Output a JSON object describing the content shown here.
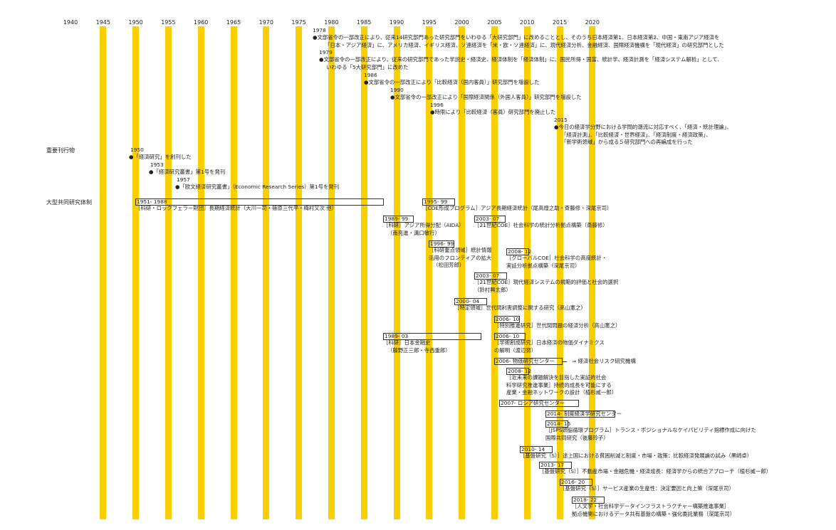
{
  "years": [
    "1940",
    "1945",
    "1950",
    "1955",
    "1960",
    "1965",
    "1970",
    "1975",
    "1980",
    "1985",
    "1990",
    "1995",
    "2000",
    "2005",
    "2010",
    "2015",
    "2020"
  ],
  "sections": {
    "publications": "重要刊行物",
    "projects": "大型共同研究体制"
  },
  "history": [
    {
      "year": "1978",
      "lines": [
        "●文部省令の一部改正により、従来14研究部門あった研究部門をいわゆる「大研究部門」に改めることとし、そのうち日本経済第1、日本経済第2、中国・東南アジア経済を",
        "「日本・アジア経済」に、アメリカ経済、イギリス経済、ソ連経済を「米・欧・ソ連経済」に、現代経済分析、金融経済、国際経済機構を「現代経済」の研究部門とした"
      ]
    },
    {
      "year": "1979",
      "lines": [
        "●文部省令の一部改正により、従来の研究部門であった学説史・経済史、経済体制を「経済体制」に、国民所得・国富、統計学、経済計測を「経済システム解析」として、",
        "いわゆる「5大研究部門」に改めた"
      ]
    },
    {
      "year": "1986",
      "lines": [
        "●文部省令の一部改正により「比較経済（国内客員）」研究部門を増設した"
      ]
    },
    {
      "year": "1990",
      "lines": [
        "●文部省令の一部改正により「国際経済関係（外国人客員）」研究部門を増設した"
      ]
    },
    {
      "year": "1996",
      "lines": [
        "●時限により「比較経済（客員）研究部門を廃止した"
      ]
    },
    {
      "year": "2015",
      "lines": [
        "●今日の経済学分野における学問的潮流に対応すべく、「経済・統計理論」、",
        "「経済計測」、「比較経済・世界経済」、「経済制度・経済政策」、",
        "「新学術領域」から成る５研究部門への再編成を行った"
      ]
    }
  ],
  "publications": [
    {
      "year": "1950",
      "text": "●「経済研究」を創刊した"
    },
    {
      "year": "1953",
      "text": "●「経済研究叢書」第1号を発刊"
    },
    {
      "year": "1957",
      "text": "●「欧文経済研究叢書」（Economic Research Series）第1号を発刊"
    }
  ],
  "projects": [
    {
      "period": "1951- 1988",
      "lines": [
        "［科研・ロックフェラー財団］長期経済統計（大川一司・篠原三代平・梅村又次 他）"
      ]
    },
    {
      "period": "1995- 99",
      "lines": [
        "［COE形成プログラム］アジア長期経済統計（尾高煌之助・斎藤修・深尾京司）"
      ]
    },
    {
      "period": "1989- 99",
      "lines": [
        "［科研］アジア所得分配（AIDA）",
        "（南亮進・溝口敏行）"
      ]
    },
    {
      "period": "2003- 07",
      "lines": [
        "［21世紀COE］社会科学の統計分析拠点構築（斎藤修）"
      ]
    },
    {
      "period": "1996- 99",
      "lines": [
        "［科研重点領域］統計情報",
        "活用のフロンティアの拡大",
        "（松田芳郎）"
      ]
    },
    {
      "period": "2008- 12",
      "lines": [
        "［グローバルCOE］社会科学の高度統計・",
        "実証分析拠点構築（深尾京司）"
      ]
    },
    {
      "period": "2003- 07",
      "lines": [
        "［21世紀COE］現代経済システムの規範的評価と社会的選択",
        "（鈴村興太郎）"
      ]
    },
    {
      "period": "2000- 04",
      "lines": [
        "［特定領域］世代間利害調整に関する研究（高山憲之）"
      ]
    },
    {
      "period": "2006- 10",
      "lines": [
        "［特別推進研究］世代間問題の経済分析（高山憲之）"
      ]
    },
    {
      "period": "1989- 03",
      "lines": [
        "［科研］日本金融史",
        "（藤野正三郎・寺西重郎）"
      ]
    },
    {
      "period": "2006- 10",
      "lines": [
        "［学術創成研究］日本経済の物価ダイナミクス",
        "の解明（渡辺努）"
      ]
    },
    {
      "period": "2006-  物価研究センター",
      "lines": []
    },
    {
      "arrow": "⇒  経済社会リスク研究機構"
    },
    {
      "period": "2008- 12",
      "lines": [
        "［近未来の課題解決を目指した実証的社会",
        "科学研究推進事業］持続的成長を可能にする",
        "産業・金融ネットワークの設計（植杉威一郎）"
      ]
    },
    {
      "period": "2007-  ロシア研究センター",
      "lines": []
    },
    {
      "period": "2014-  制度経済学研究センター",
      "lines": []
    },
    {
      "period": "2014- 16",
      "lines": [
        "［JSPS頭脳循環プログラム］トランス・ポジショナルなケイパビリティ指標作成に向けた",
        "国際共同研究（後藤玲子）"
      ]
    },
    {
      "period": "2010- 14",
      "lines": [
        "［基盤研究（S）］途上国における貧困削減と制度・市場・政策：比較経済発展論の試み（黒崎卓）"
      ]
    },
    {
      "period": "2013- 17",
      "lines": [
        "［基盤研究（S）］不動産市場・金融危機・経済成長：経済学からの統合アプローチ（植杉威一郎）"
      ]
    },
    {
      "period": "2016- 20",
      "lines": [
        "［基盤研究（S）］サービス産業の生産性：決定要因と向上策（深尾京司）"
      ]
    },
    {
      "period": "2018- 22",
      "lines": [
        "［人文学・社会科学データインフラストラクチャー構築推進事業］",
        "拠点機関におけるデータ共有基盤の構築・強化委託業務（深尾京司）"
      ]
    }
  ],
  "colors": {
    "bar": "#f9cf00",
    "text": "#222222"
  }
}
